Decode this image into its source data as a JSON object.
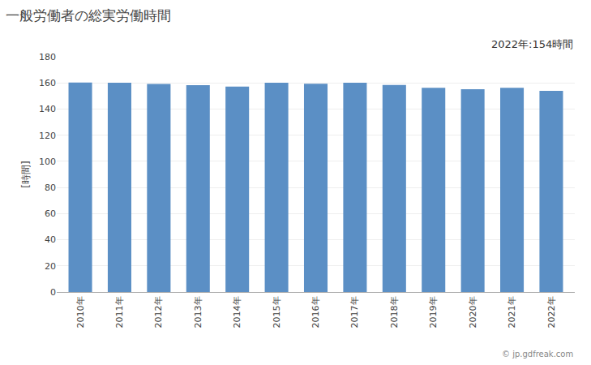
{
  "chart_data": {
    "type": "bar",
    "title": "一般労働者の総実労働時間",
    "ylabel": "[時間]",
    "annotations": [
      "2022年:154時間",
      "© jp.gdfreak.com"
    ],
    "categories": [
      "2010年",
      "2011年",
      "2012年",
      "2013年",
      "2014年",
      "2015年",
      "2016年",
      "2017年",
      "2018年",
      "2019年",
      "2020年",
      "2021年",
      "2022年"
    ],
    "values": [
      160.3,
      160.1,
      159.2,
      158.3,
      157.2,
      160.1,
      159.3,
      160.2,
      158.4,
      156.3,
      155.1,
      156.2,
      154.0
    ],
    "color": "#5b8fc5",
    "ylim": [
      0,
      180
    ],
    "yticks": [
      0,
      20,
      40,
      60,
      80,
      100,
      120,
      140,
      160,
      180
    ],
    "grid": true
  }
}
